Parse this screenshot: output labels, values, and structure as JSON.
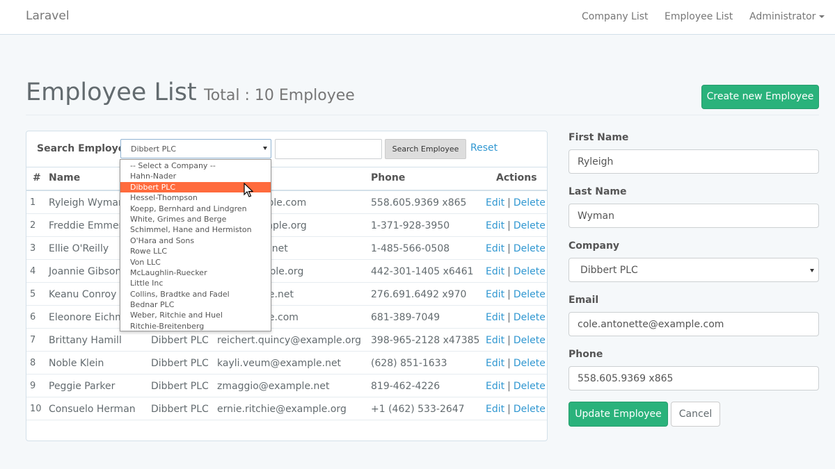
{
  "navbar": {
    "brand": "Laravel",
    "links": [
      "Company List",
      "Employee List"
    ],
    "user": "Administrator"
  },
  "header": {
    "title": "Employee List",
    "subtitle": "Total : 10 Employee",
    "create_button": "Create new Employee"
  },
  "search": {
    "label": "Search Employee",
    "selected_company": "Dibbert PLC",
    "text_value": "",
    "button": "Search Employee",
    "reset": "Reset"
  },
  "dropdown": {
    "options": [
      "-- Select a Company --",
      "Hahn-Nader",
      "Dibbert PLC",
      "Hessel-Thompson",
      "Koepp, Bernhard and Lindgren",
      "White, Grimes and Berge",
      "Schimmel, Hane and Hermiston",
      "O'Hara and Sons",
      "Rowe LLC",
      "Von LLC",
      "McLaughlin-Ruecker",
      "Little Inc",
      "Collins, Bradtke and Fadel",
      "Bednar PLC",
      "Weber, Ritchie and Huel",
      "Ritchie-Breitenberg"
    ],
    "highlighted": "Dibbert PLC"
  },
  "table": {
    "headers": {
      "num": "#",
      "name": "Name",
      "phone": "Phone",
      "actions": "Actions"
    },
    "edit_label": "Edit",
    "separator": "|",
    "delete_label": "Delete",
    "rows": [
      {
        "num": "1",
        "name": "Ryleigh Wyman",
        "company": "",
        "email": "tte@example.com",
        "phone": "558.605.9369 x865"
      },
      {
        "num": "2",
        "name": "Freddie Emmeri",
        "company": "",
        "email": "bler@example.org",
        "phone": "1-371-928-3950"
      },
      {
        "num": "3",
        "name": "Ellie O'Reilly",
        "company": "",
        "email": "@example.net",
        "phone": "1-485-566-0508"
      },
      {
        "num": "4",
        "name": "Joannie Gibson",
        "company": "",
        "email": "ery@example.org",
        "phone": "442-301-1405 x6461"
      },
      {
        "num": "5",
        "name": "Keanu Conroy",
        "company": "",
        "email": "y@example.net",
        "phone": "276.691.6492 x970"
      },
      {
        "num": "6",
        "name": "Eleonore Eichm",
        "company": "",
        "email": "y@example.com",
        "phone": "681-389-7049"
      },
      {
        "num": "7",
        "name": "Brittany Hamill",
        "company": "Dibbert PLC",
        "email": "reichert.quincy@example.org",
        "phone": "398-965-2128 x47385"
      },
      {
        "num": "8",
        "name": "Noble Klein",
        "company": "Dibbert PLC",
        "email": "kayli.veum@example.net",
        "phone": "(628) 851-1633"
      },
      {
        "num": "9",
        "name": "Peggie Parker",
        "company": "Dibbert PLC",
        "email": "zmaggio@example.net",
        "phone": "819-462-4226"
      },
      {
        "num": "10",
        "name": "Consuelo Herman",
        "company": "Dibbert PLC",
        "email": "ernie.ritchie@example.org",
        "phone": "+1 (462) 533-2647"
      }
    ]
  },
  "form": {
    "first_name_label": "First Name",
    "first_name": "Ryleigh",
    "last_name_label": "Last Name",
    "last_name": "Wyman",
    "company_label": "Company",
    "company": "Dibbert PLC",
    "email_label": "Email",
    "email": "cole.antonette@example.com",
    "phone_label": "Phone",
    "phone": "558.605.9369 x865",
    "update_button": "Update Employee",
    "cancel_button": "Cancel"
  },
  "colors": {
    "primary_green": "#2ab27b",
    "link_blue": "#3097d1",
    "dropdown_highlight": "#ff6b3d"
  }
}
